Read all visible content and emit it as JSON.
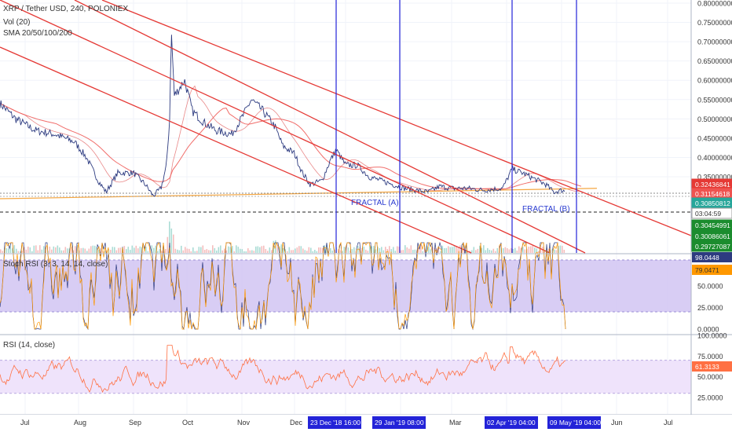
{
  "chart_data": [
    {
      "type": "line",
      "panel": "price",
      "title": "XRP / Tether USD, 240, POLONIEX",
      "subtitles": [
        "Vol (20)",
        "SMA 20/50/100/200"
      ],
      "x_ticks": [
        "Jul",
        "Aug",
        "Sep",
        "Oct",
        "Nov",
        "Dec",
        "Mar",
        "Jun",
        "Jul"
      ],
      "y_axis_labels": [
        "0.80000000",
        "0.75000000",
        "0.70000000",
        "0.65000000",
        "0.60000000",
        "0.55000000",
        "0.50000000",
        "0.45000000",
        "0.40000000",
        "0.35000000",
        "0.29727087"
      ],
      "price_tags": [
        {
          "label": "0.32436841",
          "color": "#e53935"
        },
        {
          "label": "0.31154618",
          "color": "#ef5350"
        },
        {
          "label": "0.30850812",
          "color": "#26a69a"
        },
        {
          "label": "03:04:59",
          "color": "#ffffff",
          "text_color": "#333333"
        },
        {
          "label": "0.30454991",
          "color": "#1b8c2e"
        },
        {
          "label": "0.30086061",
          "color": "#1b8c2e"
        },
        {
          "label": "0.29727087",
          "color": "#1b8c2e"
        }
      ],
      "annotations": [
        "FRACTAL  (A)",
        "FRACTAL  (B)"
      ],
      "vertical_markers": [
        "23 Dec '18   16:00",
        "29 Jan '19   08:00",
        "02 Apr '19   04:00",
        "09 May '19   04:00"
      ],
      "price_series": [
        [
          "Jul",
          0.55
        ],
        [
          "Jul",
          0.47
        ],
        [
          "Aug",
          0.43
        ],
        [
          "Aug",
          0.35
        ],
        [
          "Aug",
          0.31
        ],
        [
          "Sep",
          0.3
        ],
        [
          "Sep",
          0.34
        ],
        [
          "Sep",
          0.74
        ],
        [
          "Oct",
          0.5
        ],
        [
          "Oct",
          0.44
        ],
        [
          "Nov",
          0.55
        ],
        [
          "Nov",
          0.47
        ],
        [
          "Nov",
          0.38
        ],
        [
          "Dec",
          0.33
        ],
        [
          "Dec",
          0.42
        ],
        [
          "Jan",
          0.35
        ],
        [
          "Jan",
          0.32
        ],
        [
          "Feb",
          0.3
        ],
        [
          "Mar",
          0.31
        ],
        [
          "Mar",
          0.32
        ],
        [
          "Apr",
          0.36
        ],
        [
          "Apr",
          0.33
        ],
        [
          "May",
          0.31
        ],
        [
          "May",
          0.3115
        ]
      ],
      "colors": {
        "price": "#2d3b80",
        "channel": "#e53935",
        "marker": "#2323d8",
        "sma_orange": "#f5a742",
        "sma_red": "#ef5350",
        "blue_text": "#2a3bd0"
      }
    },
    {
      "type": "line",
      "panel": "stoch_rsi",
      "title": "Stoch RSI (3, 3, 14, 14, close)",
      "y_axis_labels": [
        "50.0000",
        "25.0000",
        "0.0000"
      ],
      "price_tags": [
        {
          "label": "98.0448",
          "color": "#2d3b80"
        },
        {
          "label": "79.0471",
          "color": "#ff9800",
          "text_color": "#333333"
        }
      ],
      "band": [
        20,
        80
      ],
      "colors": {
        "k": "#2d3b80",
        "d": "#ff9800",
        "band": "#d1c4f2"
      }
    },
    {
      "type": "line",
      "panel": "rsi",
      "title": "RSI (14, close)",
      "y_axis_labels": [
        "100.0000",
        "75.0000",
        "50.0000",
        "25.0000"
      ],
      "price_tags": [
        {
          "label": "61.3133",
          "color": "#ff7043"
        }
      ],
      "band": [
        30,
        70
      ],
      "colors": {
        "line": "#ff7043",
        "band": "#efe3fb"
      }
    }
  ]
}
